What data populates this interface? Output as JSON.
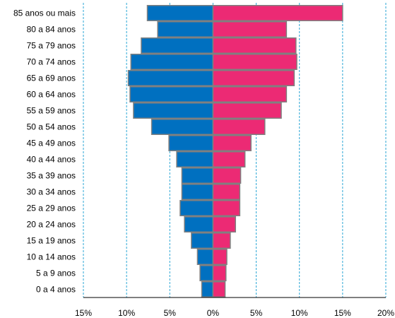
{
  "chart_data": {
    "type": "bar",
    "orientation": "horizontal-population-pyramid",
    "title": "",
    "xlabel": "",
    "ylabel": "",
    "categories": [
      "85 anos ou mais",
      "80 a 84 anos",
      "75 a 79 anos",
      "70 a 74 anos",
      "65 a 69 anos",
      "60 a 64 anos",
      "55 a 59 anos",
      "50 a 54 anos",
      "45 a 49 anos",
      "40 a 44 anos",
      "35 a 39 anos",
      "30 a 34 anos",
      "25 a 29 anos",
      "20 a 24 anos",
      "15 a 19 anos",
      "10 a 14 anos",
      "5 a 9 anos",
      "0 a 4 anos"
    ],
    "series": [
      {
        "color": "#0070c0",
        "side": "left",
        "values": [
          7.6,
          6.4,
          8.3,
          9.5,
          9.8,
          9.6,
          9.2,
          7.1,
          5.1,
          4.2,
          3.6,
          3.6,
          3.8,
          3.3,
          2.5,
          1.8,
          1.5,
          1.3
        ]
      },
      {
        "color": "#ec2a74",
        "side": "right",
        "values": [
          15.0,
          8.5,
          9.6,
          9.7,
          9.4,
          8.5,
          7.9,
          6.0,
          4.4,
          3.7,
          3.2,
          3.1,
          3.1,
          2.6,
          2.0,
          1.6,
          1.5,
          1.4
        ]
      }
    ],
    "x_ticks": [
      "15%",
      "10%",
      "5%",
      "0%",
      "5%",
      "10%",
      "15%",
      "20%"
    ],
    "xlim": [
      -15,
      20
    ],
    "grid": {
      "vertical_dashed": true
    }
  }
}
